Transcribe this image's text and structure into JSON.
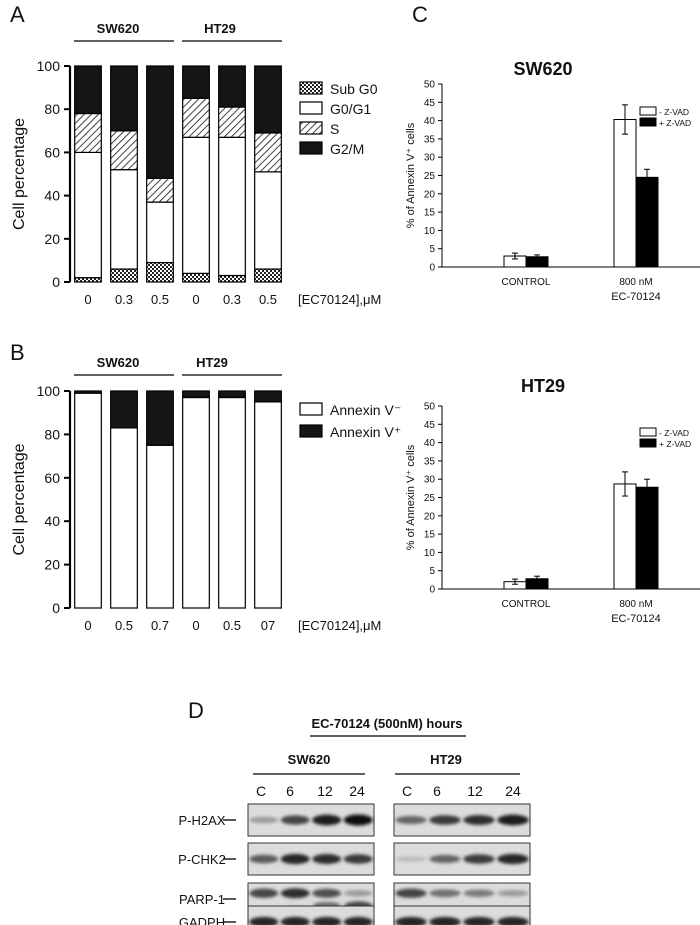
{
  "panel_letters": {
    "a": "A",
    "b": "B",
    "c": "C",
    "d": "D"
  },
  "chart_data": [
    {
      "id": "A",
      "type": "bar",
      "stacked": true,
      "percent_scale": true,
      "groups": [
        "SW620",
        "HT29"
      ],
      "categories": [
        "0",
        "0.3",
        "0.5",
        "0",
        "0.3",
        "0.5"
      ],
      "xlabel": "[EC70124],μM",
      "ylabel": "Cell percentage",
      "ylim": [
        0,
        100
      ],
      "yticks": [
        "0",
        "20",
        "40",
        "60",
        "80",
        "100"
      ],
      "legend_position": "right",
      "series": [
        {
          "name": "Sub G0",
          "pattern": "checker",
          "values": [
            2,
            6,
            9,
            4,
            3,
            6
          ]
        },
        {
          "name": "G0/G1",
          "pattern": "white",
          "values": [
            58,
            46,
            28,
            63,
            64,
            45
          ]
        },
        {
          "name": "S",
          "pattern": "hatch",
          "values": [
            18,
            18,
            11,
            18,
            14,
            18
          ]
        },
        {
          "name": "G2/M",
          "pattern": "black",
          "values": [
            22,
            30,
            52,
            15,
            19,
            31
          ]
        }
      ]
    },
    {
      "id": "B",
      "type": "bar",
      "stacked": true,
      "percent_scale": true,
      "groups": [
        "SW620",
        "HT29"
      ],
      "categories": [
        "0",
        "0.5",
        "0.7",
        "0",
        "0.5",
        "07"
      ],
      "xlabel": "[EC70124],μM",
      "ylabel": "Cell percentage",
      "ylim": [
        0,
        100
      ],
      "yticks": [
        "0",
        "20",
        "40",
        "60",
        "80",
        "100"
      ],
      "legend_position": "right",
      "series": [
        {
          "name": "Annexin V⁻",
          "pattern": "white",
          "values": [
            99,
            83,
            75,
            97,
            97,
            95
          ]
        },
        {
          "name": "Annexin V⁺",
          "pattern": "black",
          "values": [
            1,
            17,
            25,
            3,
            3,
            5
          ]
        }
      ]
    },
    {
      "id": "C-SW620",
      "type": "bar",
      "title": "SW620",
      "ylabel": "% of Annexin V⁺ cells",
      "ylim": [
        0,
        50
      ],
      "yticks": [
        "0",
        "5",
        "10",
        "15",
        "20",
        "25",
        "30",
        "35",
        "40",
        "45",
        "50"
      ],
      "categories": [
        "CONTROL",
        "800 nM"
      ],
      "xlabel": "EC-70124",
      "legend_position": "top-right",
      "series": [
        {
          "name": "- Z-VAD",
          "fill": "#ffffff",
          "values": [
            3.0,
            40.3
          ],
          "errors": [
            0.8,
            4.0
          ]
        },
        {
          "name": "+ Z-VAD",
          "fill": "#000000",
          "values": [
            2.8,
            24.5
          ],
          "errors": [
            0.5,
            2.2
          ]
        }
      ]
    },
    {
      "id": "C-HT29",
      "type": "bar",
      "title": "HT29",
      "ylabel": "% of Annexin V⁺ cells",
      "ylim": [
        0,
        50
      ],
      "yticks": [
        "0",
        "5",
        "10",
        "15",
        "20",
        "25",
        "30",
        "35",
        "40",
        "45",
        "50"
      ],
      "categories": [
        "CONTROL",
        "800 nM"
      ],
      "xlabel": "EC-70124",
      "legend_position": "top-right",
      "series": [
        {
          "name": "- Z-VAD",
          "fill": "#ffffff",
          "values": [
            2.0,
            28.7
          ],
          "errors": [
            0.7,
            3.3
          ]
        },
        {
          "name": "+ Z-VAD",
          "fill": "#000000",
          "values": [
            2.8,
            27.8
          ],
          "errors": [
            0.7,
            2.2
          ]
        }
      ]
    }
  ],
  "western": {
    "header": "EC-70124 (500nM) hours",
    "cell_lines": [
      "SW620",
      "HT29"
    ],
    "lanes": [
      "C",
      "6",
      "12",
      "24"
    ],
    "rows": [
      {
        "label": "P-H2AX",
        "intensity": [
          [
            0.35,
            0.75,
            0.95,
            1.0
          ],
          [
            0.6,
            0.8,
            0.85,
            0.95
          ]
        ],
        "lower_band": null
      },
      {
        "label": "P-CHK2",
        "intensity": [
          [
            0.65,
            0.9,
            0.85,
            0.8
          ],
          [
            0.2,
            0.6,
            0.8,
            0.9
          ]
        ],
        "lower_band": null
      },
      {
        "label": "PARP-1",
        "intensity": [
          [
            0.75,
            0.85,
            0.7,
            0.35
          ],
          [
            0.75,
            0.55,
            0.5,
            0.35
          ]
        ],
        "lower_band": [
          [
            0.0,
            0.1,
            0.6,
            0.8
          ],
          [
            0.0,
            0.0,
            0.0,
            0.0
          ]
        ]
      },
      {
        "label": "GADPH",
        "intensity": [
          [
            0.9,
            0.9,
            0.9,
            0.9
          ],
          [
            0.9,
            0.9,
            0.9,
            0.9
          ]
        ],
        "lower_band": null
      }
    ]
  }
}
